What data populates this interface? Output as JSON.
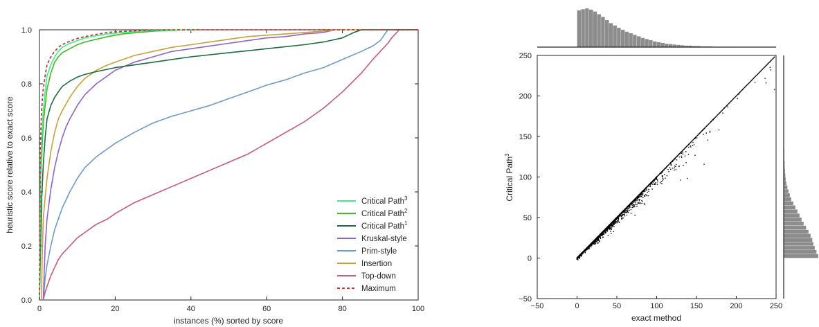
{
  "chart_data": [
    {
      "type": "line",
      "xlabel": "instances (%) sorted by score",
      "ylabel": "heuristic score relative to exact score",
      "xlim": [
        0,
        100
      ],
      "ylim": [
        0.0,
        1.0
      ],
      "xticks": [
        "0",
        "20",
        "40",
        "60",
        "80",
        "100"
      ],
      "yticks": [
        "0.0",
        "0.2",
        "0.4",
        "0.6",
        "0.8",
        "1.0"
      ],
      "grid": false,
      "legend_position": "bottom-right",
      "series": [
        {
          "name": "Critical Path",
          "sup": "3",
          "color": "#3ef08a",
          "dash": false,
          "x": [
            0,
            0.3,
            0.7,
            1,
            1.5,
            2,
            3,
            4,
            5,
            6,
            8,
            10,
            12,
            15,
            18,
            22,
            26,
            30,
            35,
            40,
            41
          ],
          "y": [
            0,
            0.5,
            0.62,
            0.7,
            0.77,
            0.83,
            0.87,
            0.9,
            0.92,
            0.935,
            0.95,
            0.96,
            0.97,
            0.978,
            0.985,
            0.99,
            0.994,
            0.997,
            0.999,
            1.0,
            1.0
          ]
        },
        {
          "name": "Critical Path",
          "sup": "2",
          "color": "#44b91f",
          "dash": false,
          "x": [
            0,
            0.3,
            0.7,
            1,
            1.5,
            2,
            3,
            4,
            5,
            6,
            8,
            10,
            12,
            15,
            18,
            22,
            26,
            30,
            35,
            40,
            42
          ],
          "y": [
            0,
            0.45,
            0.57,
            0.65,
            0.72,
            0.78,
            0.84,
            0.88,
            0.9,
            0.915,
            0.93,
            0.945,
            0.955,
            0.965,
            0.975,
            0.985,
            0.99,
            0.995,
            0.998,
            1.0,
            1.0
          ]
        },
        {
          "name": "Critical Path",
          "sup": "1",
          "color": "#1a6b3f",
          "dash": false,
          "x": [
            0,
            0.3,
            0.6,
            1,
            1.5,
            2,
            3,
            4,
            5,
            6,
            8,
            10,
            12,
            15,
            20,
            25,
            30,
            40,
            50,
            60,
            70,
            75,
            80,
            83,
            85,
            100
          ],
          "y": [
            0,
            0.2,
            0.38,
            0.5,
            0.6,
            0.67,
            0.72,
            0.75,
            0.77,
            0.79,
            0.81,
            0.825,
            0.835,
            0.845,
            0.86,
            0.87,
            0.88,
            0.9,
            0.915,
            0.93,
            0.945,
            0.955,
            0.97,
            0.99,
            1.0,
            1.0
          ]
        },
        {
          "name": "Kruskal-style",
          "sup": "",
          "color": "#8e64c8",
          "dash": false,
          "x": [
            1,
            1.5,
            2,
            3,
            4,
            5,
            6,
            7,
            8,
            10,
            12,
            15,
            18,
            20,
            25,
            30,
            35,
            40,
            45,
            50,
            55,
            60,
            65,
            70,
            75,
            78,
            80
          ],
          "y": [
            0.0,
            0.2,
            0.3,
            0.41,
            0.49,
            0.55,
            0.6,
            0.64,
            0.67,
            0.72,
            0.76,
            0.8,
            0.83,
            0.85,
            0.88,
            0.9,
            0.92,
            0.93,
            0.94,
            0.95,
            0.96,
            0.97,
            0.975,
            0.985,
            0.99,
            1.0,
            1.0
          ]
        },
        {
          "name": "Prim-style",
          "sup": "",
          "color": "#6a9bcb",
          "dash": false,
          "x": [
            1,
            1.5,
            2,
            3,
            4,
            5,
            6,
            8,
            10,
            12,
            15,
            18,
            20,
            25,
            30,
            35,
            40,
            45,
            50,
            55,
            60,
            65,
            70,
            75,
            80,
            85,
            88,
            90,
            91,
            92,
            100
          ],
          "y": [
            0.0,
            0.08,
            0.13,
            0.2,
            0.26,
            0.3,
            0.34,
            0.4,
            0.45,
            0.49,
            0.53,
            0.56,
            0.58,
            0.62,
            0.655,
            0.68,
            0.7,
            0.72,
            0.745,
            0.77,
            0.795,
            0.815,
            0.84,
            0.86,
            0.89,
            0.92,
            0.94,
            0.96,
            0.98,
            1.0,
            1.0
          ]
        },
        {
          "name": "Insertion",
          "sup": "",
          "color": "#c8a03a",
          "dash": false,
          "x": [
            0.5,
            0.8,
            1,
            1.5,
            2,
            3,
            4,
            5,
            6,
            8,
            10,
            12,
            15,
            18,
            20,
            25,
            30,
            35,
            40,
            45,
            50,
            55,
            60,
            65,
            70,
            75,
            78,
            80,
            100
          ],
          "y": [
            0.0,
            0.2,
            0.3,
            0.38,
            0.45,
            0.55,
            0.62,
            0.67,
            0.7,
            0.75,
            0.79,
            0.82,
            0.85,
            0.87,
            0.88,
            0.905,
            0.92,
            0.935,
            0.945,
            0.955,
            0.965,
            0.975,
            0.98,
            0.985,
            0.99,
            0.995,
            1.0,
            1.0,
            1.0
          ]
        },
        {
          "name": "Top-down",
          "sup": "",
          "color": "#c8587d",
          "dash": false,
          "x": [
            1,
            1.5,
            2,
            3,
            4,
            5,
            6,
            8,
            10,
            12,
            15,
            18,
            20,
            25,
            30,
            35,
            40,
            45,
            50,
            55,
            60,
            65,
            70,
            75,
            80,
            85,
            88,
            90,
            92,
            93,
            94,
            95,
            100
          ],
          "y": [
            0.0,
            0.03,
            0.05,
            0.09,
            0.12,
            0.15,
            0.17,
            0.2,
            0.23,
            0.25,
            0.28,
            0.3,
            0.32,
            0.36,
            0.39,
            0.42,
            0.45,
            0.48,
            0.51,
            0.54,
            0.58,
            0.62,
            0.66,
            0.71,
            0.77,
            0.84,
            0.89,
            0.92,
            0.95,
            0.97,
            0.985,
            1.0,
            1.0
          ]
        },
        {
          "name": "Maximum",
          "sup": "",
          "color": "#c43a3a",
          "dash": true,
          "x": [
            0,
            0.2,
            0.5,
            0.8,
            1,
            1.5,
            2,
            3,
            4,
            5,
            6,
            8,
            10,
            12,
            15,
            18,
            22,
            26,
            30,
            35,
            39,
            100
          ],
          "y": [
            0,
            0.55,
            0.68,
            0.75,
            0.78,
            0.83,
            0.87,
            0.9,
            0.92,
            0.935,
            0.945,
            0.958,
            0.968,
            0.975,
            0.983,
            0.99,
            0.994,
            0.997,
            0.999,
            1.0,
            1.0,
            1.0
          ]
        }
      ]
    },
    {
      "type": "scatter",
      "xlabel": "exact method",
      "ylabel": "Critical Path",
      "ylabel_sup": "3",
      "xlim": [
        -50,
        250
      ],
      "ylim": [
        -50,
        250
      ],
      "xticks": [
        "−50",
        "0",
        "50",
        "100",
        "150",
        "200",
        "250"
      ],
      "yticks": [
        "−50",
        "0",
        "50",
        "100",
        "150",
        "200",
        "250"
      ],
      "top_histogram": {
        "bin_start": 0,
        "bin_width": 5,
        "counts": [
          95,
          98,
          100,
          97,
          92,
          85,
          78,
          70,
          62,
          56,
          50,
          45,
          40,
          36,
          32,
          28,
          24,
          21,
          18,
          15,
          13,
          11,
          9,
          8,
          7,
          6,
          5,
          4,
          4,
          3,
          3,
          2,
          2,
          2,
          1,
          1,
          1,
          1,
          1,
          1
        ]
      },
      "right_histogram": {
        "bin_start": 0,
        "bin_width": 5,
        "counts": [
          100,
          95,
          90,
          86,
          83,
          78,
          72,
          65,
          58,
          52,
          46,
          40,
          34,
          28,
          22,
          18,
          14,
          11,
          8,
          6,
          5,
          4,
          3,
          3,
          2,
          2,
          2,
          1,
          1,
          1,
          1,
          1
        ]
      }
    }
  ]
}
